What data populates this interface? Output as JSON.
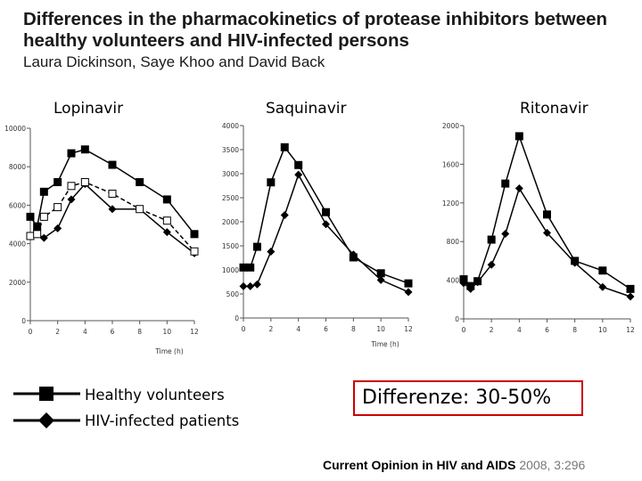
{
  "header": {
    "title": "Differences in the pharmacokinetics of protease inhibitors between healthy volunteers and HIV-infected persons",
    "authors": "Laura Dickinson, Saye Khoo and David Back"
  },
  "legend": {
    "healthy": "Healthy volunteers",
    "hiv": "HIV-infected patients"
  },
  "annotation": "Differenze: 30-50%",
  "footer": {
    "journal": "Current Opinion in HIV and AIDS",
    "citation": "2008, 3:296"
  },
  "colors": {
    "series": "#000000",
    "callout_border": "#cc0000"
  },
  "chart_data": [
    {
      "type": "line",
      "title": "Lopinavir",
      "xlabel": "Time (h)",
      "xlim": [
        0,
        12
      ],
      "ylim": [
        0,
        10000
      ],
      "xticks": [
        0,
        2,
        4,
        6,
        8,
        10,
        12
      ],
      "yticks": [
        0,
        2000,
        4000,
        6000,
        8000,
        10000
      ],
      "series": [
        {
          "name": "Healthy volunteers",
          "marker": "square-filled",
          "dash": "solid",
          "x": [
            0,
            0.5,
            1,
            2,
            3,
            4,
            6,
            8,
            10,
            12
          ],
          "y": [
            5400,
            4900,
            6700,
            7200,
            8700,
            8900,
            8100,
            7200,
            6300,
            4500
          ]
        },
        {
          "name": "HIV-infected patients",
          "marker": "diamond-filled",
          "dash": "solid",
          "x": [
            0,
            0.5,
            1,
            2,
            3,
            4,
            6,
            8,
            10,
            12
          ],
          "y": [
            4400,
            4500,
            4300,
            4800,
            6300,
            7100,
            5800,
            5800,
            4600,
            3500
          ]
        },
        {
          "name": "",
          "marker": "square-open",
          "dash": "dashed",
          "x": [
            0,
            0.5,
            1,
            2,
            3,
            4,
            6,
            8,
            10,
            12
          ],
          "y": [
            4400,
            4500,
            5400,
            5900,
            7000,
            7200,
            6600,
            5800,
            5200,
            3600
          ]
        }
      ]
    },
    {
      "type": "line",
      "title": "Saquinavir",
      "xlabel": "Time (h)",
      "xlim": [
        0,
        12
      ],
      "ylim": [
        0,
        4000
      ],
      "xticks": [
        0,
        2,
        4,
        6,
        8,
        10,
        12
      ],
      "yticks": [
        0,
        500,
        1000,
        1500,
        2000,
        2500,
        3000,
        3500,
        4000
      ],
      "series": [
        {
          "name": "Healthy volunteers",
          "marker": "square-filled",
          "dash": "solid",
          "x": [
            0,
            0.5,
            1,
            2,
            3,
            4,
            6,
            8,
            10,
            12
          ],
          "y": [
            1050,
            1050,
            1480,
            2820,
            3550,
            3180,
            2200,
            1260,
            930,
            720
          ]
        },
        {
          "name": "HIV-infected patients",
          "marker": "diamond-filled",
          "dash": "solid",
          "x": [
            0,
            0.5,
            1,
            2,
            3,
            4,
            6,
            8,
            10,
            12
          ],
          "y": [
            660,
            660,
            700,
            1380,
            2140,
            2980,
            1950,
            1320,
            790,
            540
          ]
        }
      ]
    },
    {
      "type": "line",
      "title": "Ritonavir",
      "xlabel": "",
      "xlim": [
        0,
        12
      ],
      "ylim": [
        0,
        2000
      ],
      "xticks": [
        0,
        2,
        4,
        6,
        8,
        10,
        12
      ],
      "yticks": [
        0,
        400,
        800,
        1200,
        1600,
        2000
      ],
      "series": [
        {
          "name": "Healthy volunteers",
          "marker": "square-filled",
          "dash": "solid",
          "x": [
            0,
            0.5,
            1,
            2,
            3,
            4,
            6,
            8,
            10,
            12
          ],
          "y": [
            410,
            340,
            390,
            820,
            1400,
            1890,
            1080,
            600,
            500,
            310
          ]
        },
        {
          "name": "HIV-infected patients",
          "marker": "diamond-filled",
          "dash": "solid",
          "x": [
            0,
            0.5,
            1,
            2,
            3,
            4,
            6,
            8,
            10,
            12
          ],
          "y": [
            370,
            310,
            380,
            560,
            880,
            1350,
            890,
            580,
            330,
            230
          ]
        }
      ]
    }
  ]
}
